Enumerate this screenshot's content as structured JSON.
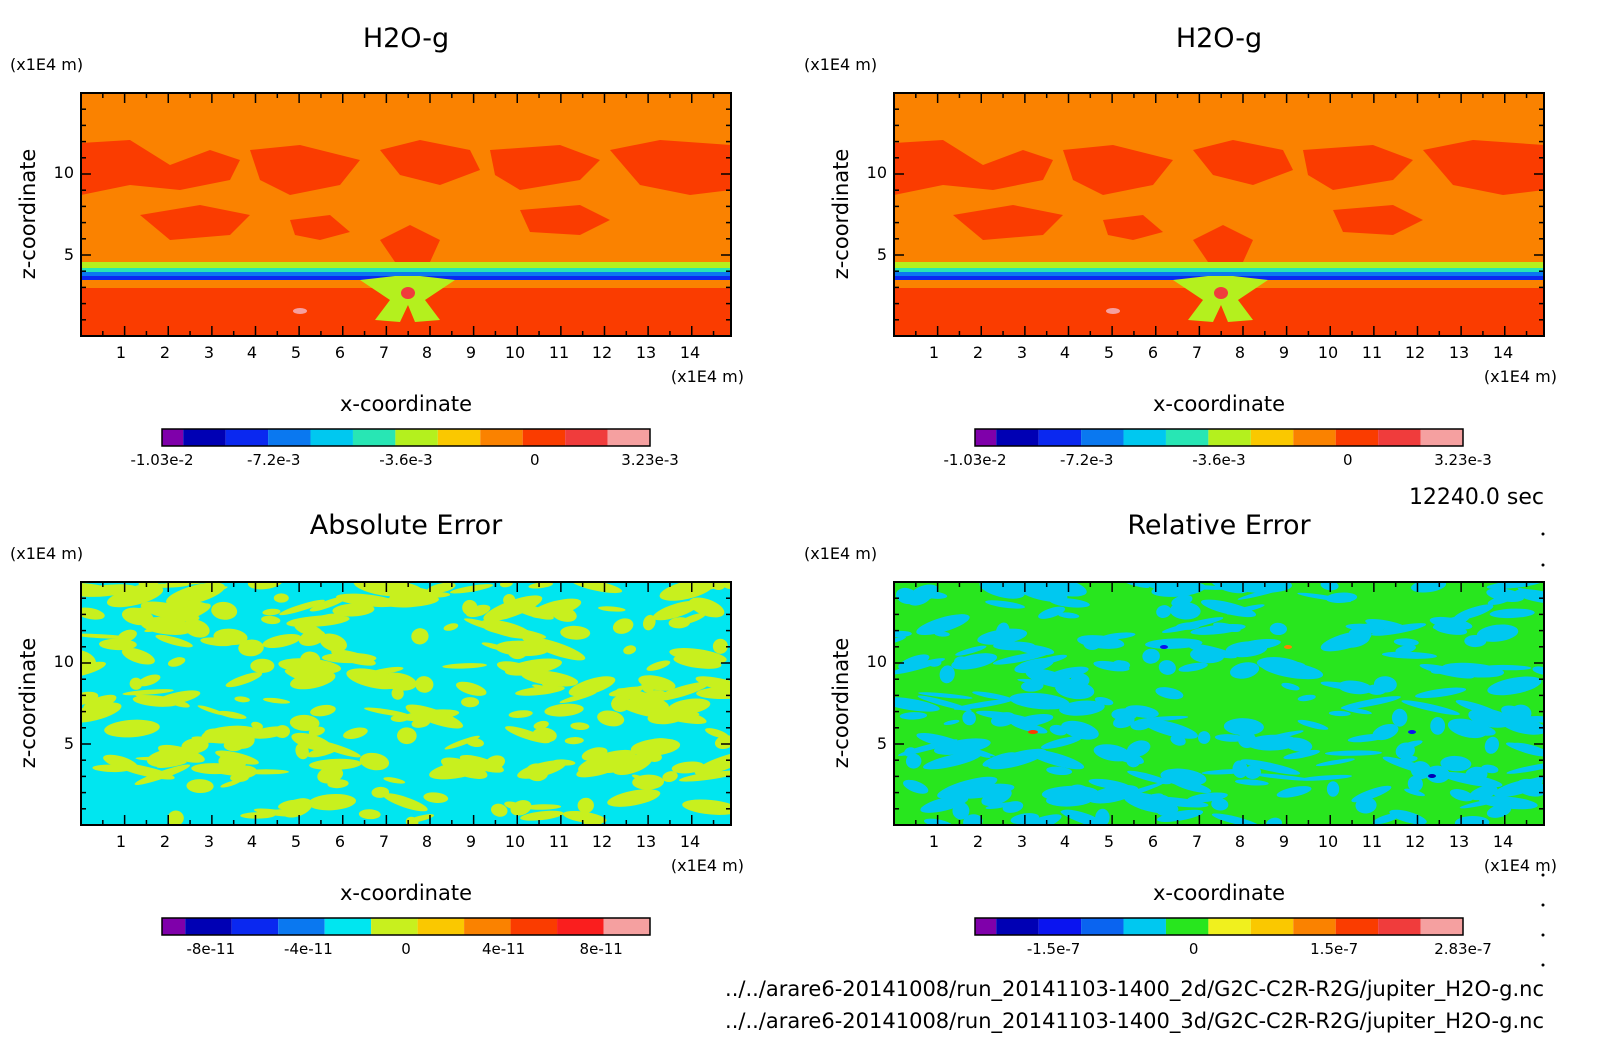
{
  "time_label": "12240.0 sec",
  "footer": {
    "line1": "../../arare6-20141008/run_20141103-1400_2d/G2C-C2R-R2G/jupiter_H2O-g.nc",
    "line2": "../../arare6-20141008/run_20141103-1400_3d/G2C-C2R-R2G/jupiter_H2O-g.nc"
  },
  "chart_data": [
    {
      "type": "heatmap",
      "title": "H2O-g",
      "xlabel": "x-coordinate",
      "ylabel": "z-coordinate",
      "x_unit": "(x1E4 m)",
      "y_unit": "(x1E4 m)",
      "x_ticks": [
        "1",
        "2",
        "3",
        "4",
        "5",
        "6",
        "7",
        "8",
        "9",
        "10",
        "11",
        "12",
        "13",
        "14"
      ],
      "y_ticks": [
        "5",
        "10"
      ],
      "xlim": [
        0,
        14.9
      ],
      "ylim": [
        0,
        15
      ],
      "colorbar": {
        "colors": [
          "#7f00aa",
          "#0000b4",
          "#0a28f0",
          "#0a78f0",
          "#00c8f0",
          "#28e6b4",
          "#b4f01e",
          "#fac800",
          "#fa8200",
          "#fa3c00",
          "#f03c3c",
          "#f5a0a0"
        ],
        "tick_labels": [
          "-1.03e-2",
          "-7.2e-3",
          "-3.6e-3",
          "0",
          "3.23e-3"
        ],
        "tick_fracs": [
          0.0,
          0.229,
          0.5,
          0.764,
          1.0
        ]
      }
    },
    {
      "type": "heatmap",
      "title": "H2O-g",
      "xlabel": "x-coordinate",
      "ylabel": "z-coordinate",
      "x_unit": "(x1E4 m)",
      "y_unit": "(x1E4 m)",
      "x_ticks": [
        "1",
        "2",
        "3",
        "4",
        "5",
        "6",
        "7",
        "8",
        "9",
        "10",
        "11",
        "12",
        "13",
        "14"
      ],
      "y_ticks": [
        "5",
        "10"
      ],
      "xlim": [
        0,
        14.9
      ],
      "ylim": [
        0,
        15
      ],
      "colorbar": {
        "colors": [
          "#7f00aa",
          "#0000b4",
          "#0a28f0",
          "#0a78f0",
          "#00c8f0",
          "#28e6b4",
          "#b4f01e",
          "#fac800",
          "#fa8200",
          "#fa3c00",
          "#f03c3c",
          "#f5a0a0"
        ],
        "tick_labels": [
          "-1.03e-2",
          "-7.2e-3",
          "-3.6e-3",
          "0",
          "3.23e-3"
        ],
        "tick_fracs": [
          0.0,
          0.229,
          0.5,
          0.764,
          1.0
        ]
      }
    },
    {
      "type": "heatmap",
      "title": "Absolute Error",
      "xlabel": "x-coordinate",
      "ylabel": "z-coordinate",
      "x_unit": "(x1E4 m)",
      "y_unit": "(x1E4 m)",
      "x_ticks": [
        "1",
        "2",
        "3",
        "4",
        "5",
        "6",
        "7",
        "8",
        "9",
        "10",
        "11",
        "12",
        "13",
        "14"
      ],
      "y_ticks": [
        "5",
        "10"
      ],
      "xlim": [
        0,
        14.9
      ],
      "ylim": [
        0,
        15
      ],
      "colorbar": {
        "colors": [
          "#7f00aa",
          "#0000b4",
          "#0a28f0",
          "#0a78f0",
          "#00e6f0",
          "#c8f01e",
          "#fac800",
          "#fa8200",
          "#fa3c00",
          "#fa1e1e",
          "#f5a0a0"
        ],
        "tick_labels": [
          "-8e-11",
          "-4e-11",
          "0",
          "4e-11",
          "8e-11"
        ],
        "tick_fracs": [
          0.1,
          0.3,
          0.5,
          0.7,
          0.9
        ]
      }
    },
    {
      "type": "heatmap",
      "title": "Relative Error",
      "xlabel": "x-coordinate",
      "ylabel": "z-coordinate",
      "x_unit": "(x1E4 m)",
      "y_unit": "(x1E4 m)",
      "x_ticks": [
        "1",
        "2",
        "3",
        "4",
        "5",
        "6",
        "7",
        "8",
        "9",
        "10",
        "11",
        "12",
        "13",
        "14"
      ],
      "y_ticks": [
        "5",
        "10"
      ],
      "xlim": [
        0,
        14.9
      ],
      "ylim": [
        0,
        15
      ],
      "colorbar": {
        "colors": [
          "#7f00aa",
          "#0000b4",
          "#0a14f0",
          "#0a64f0",
          "#00c8f0",
          "#28e61e",
          "#f0f01e",
          "#fac800",
          "#fa8200",
          "#fa3c00",
          "#f03c3c",
          "#f5a0a0"
        ],
        "tick_labels": [
          "-1.5e-7",
          "0",
          "1.5e-7",
          "2.83e-7"
        ],
        "tick_fracs": [
          0.161,
          0.448,
          0.736,
          1.0
        ]
      }
    }
  ]
}
